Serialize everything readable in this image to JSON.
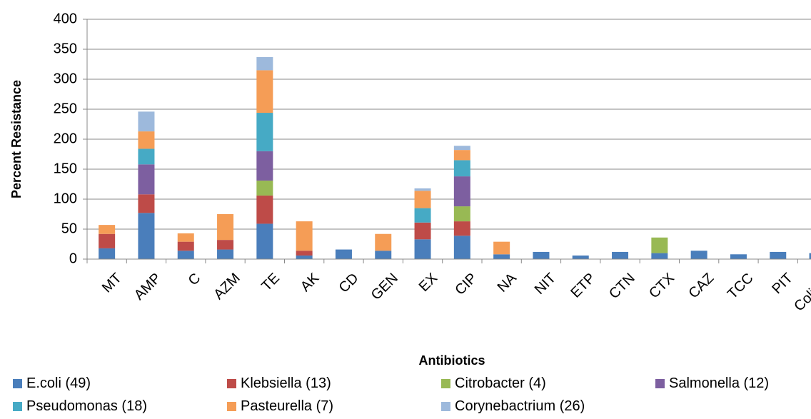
{
  "chart_data": {
    "type": "bar",
    "stacked": true,
    "xlabel": "Antibiotics",
    "ylabel": "Percent Resistance",
    "ylim": [
      0,
      400
    ],
    "yticks": [
      0,
      50,
      100,
      150,
      200,
      250,
      300,
      350,
      400
    ],
    "grid": true,
    "legend_position": "bottom",
    "categories": [
      "MT",
      "AMP",
      "C",
      "AZM",
      "TE",
      "AK",
      "CD",
      "GEN",
      "EX",
      "CIP",
      "NA",
      "NIT",
      "ETP",
      "CTN",
      "CTX",
      "CAZ",
      "TCC",
      "PIT",
      "Colistin"
    ],
    "series": [
      {
        "name": "E.coli (49)",
        "color": "#4a7ebb",
        "values": [
          18,
          77,
          14,
          16,
          59,
          6,
          16,
          14,
          33,
          39,
          8,
          12,
          6,
          12,
          10,
          14,
          8,
          12,
          10
        ]
      },
      {
        "name": "Klebsiella (13)",
        "color": "#be4b48",
        "values": [
          24,
          31,
          15,
          16,
          47,
          8,
          0,
          0,
          28,
          24,
          0,
          0,
          0,
          0,
          0,
          0,
          0,
          0,
          0
        ]
      },
      {
        "name": "Citrobacter (4)",
        "color": "#98b954",
        "values": [
          0,
          0,
          0,
          0,
          25,
          0,
          0,
          0,
          0,
          25,
          0,
          0,
          0,
          0,
          26,
          0,
          0,
          0,
          0
        ]
      },
      {
        "name": "Salmonella (12)",
        "color": "#7d5fa0",
        "values": [
          0,
          50,
          0,
          0,
          49,
          0,
          0,
          0,
          0,
          50,
          0,
          0,
          0,
          0,
          0,
          0,
          0,
          0,
          0
        ]
      },
      {
        "name": "Pseudomonas (18)",
        "color": "#46aac5",
        "values": [
          0,
          26,
          0,
          0,
          64,
          0,
          0,
          0,
          24,
          27,
          0,
          0,
          0,
          0,
          0,
          0,
          0,
          0,
          0
        ]
      },
      {
        "name": "Pasteurella (7)",
        "color": "#f59d56",
        "values": [
          15,
          29,
          14,
          43,
          71,
          49,
          0,
          28,
          29,
          17,
          21,
          0,
          0,
          0,
          0,
          0,
          0,
          0,
          0
        ]
      },
      {
        "name": "Corynebactrium (26)",
        "color": "#9db9dc",
        "values": [
          0,
          33,
          0,
          0,
          22,
          0,
          0,
          0,
          4,
          7,
          0,
          0,
          0,
          0,
          0,
          0,
          0,
          0,
          0
        ]
      }
    ]
  }
}
